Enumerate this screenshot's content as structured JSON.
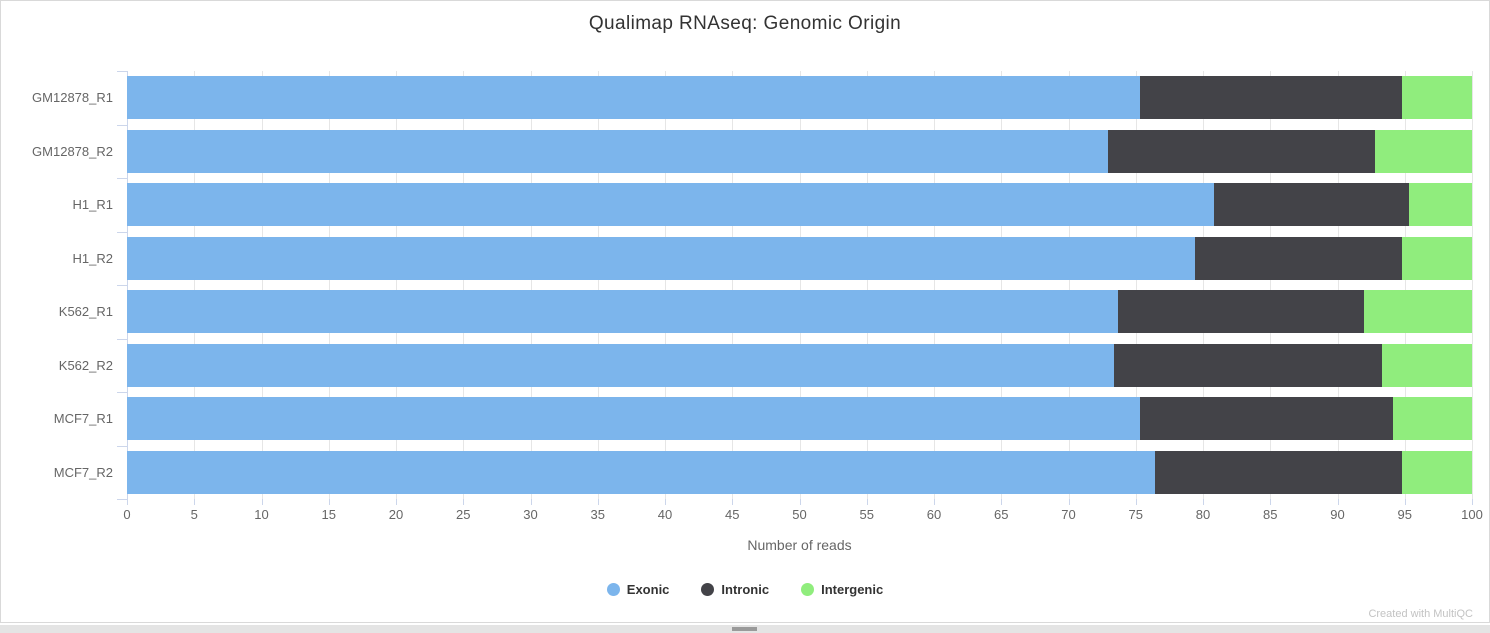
{
  "title": "Qualimap RNAseq: Genomic Origin",
  "footer_credit": "Created with MultiQC",
  "theme": {
    "exonic_color": "#7cb5ec",
    "intronic_color": "#434348",
    "intergenic_color": "#90ed7d",
    "axis_line_color": "#ccd6eb",
    "grid_color": "#e6e6e6",
    "tick_text_color": "#666666",
    "title_text_color": "#333333",
    "legend_text_color": "#333333",
    "panel_border_color": "#d9d9d9"
  },
  "chart_data": {
    "type": "bar",
    "orientation": "horizontal",
    "stacked": true,
    "title": "Qualimap RNAseq: Genomic Origin",
    "xlabel": "Number of reads",
    "ylabel": "",
    "xlim": [
      0,
      100
    ],
    "xticks": [
      0,
      5,
      10,
      15,
      20,
      25,
      30,
      35,
      40,
      45,
      50,
      55,
      60,
      65,
      70,
      75,
      80,
      85,
      90,
      95,
      100
    ],
    "grid": true,
    "legend_position": "bottom",
    "categories": [
      "GM12878_R1",
      "GM12878_R2",
      "H1_R1",
      "H1_R2",
      "K562_R1",
      "K562_R2",
      "MCF7_R1",
      "MCF7_R2"
    ],
    "series": [
      {
        "name": "Exonic",
        "color": "#7cb5ec",
        "values": [
          75.3,
          72.9,
          80.8,
          79.4,
          73.7,
          73.4,
          75.3,
          76.4
        ]
      },
      {
        "name": "Intronic",
        "color": "#434348",
        "values": [
          19.5,
          19.9,
          14.5,
          15.4,
          18.3,
          19.9,
          18.8,
          18.4
        ]
      },
      {
        "name": "Intergenic",
        "color": "#90ed7d",
        "values": [
          5.2,
          7.2,
          4.7,
          5.2,
          8.0,
          6.7,
          5.9,
          5.2
        ]
      }
    ]
  }
}
